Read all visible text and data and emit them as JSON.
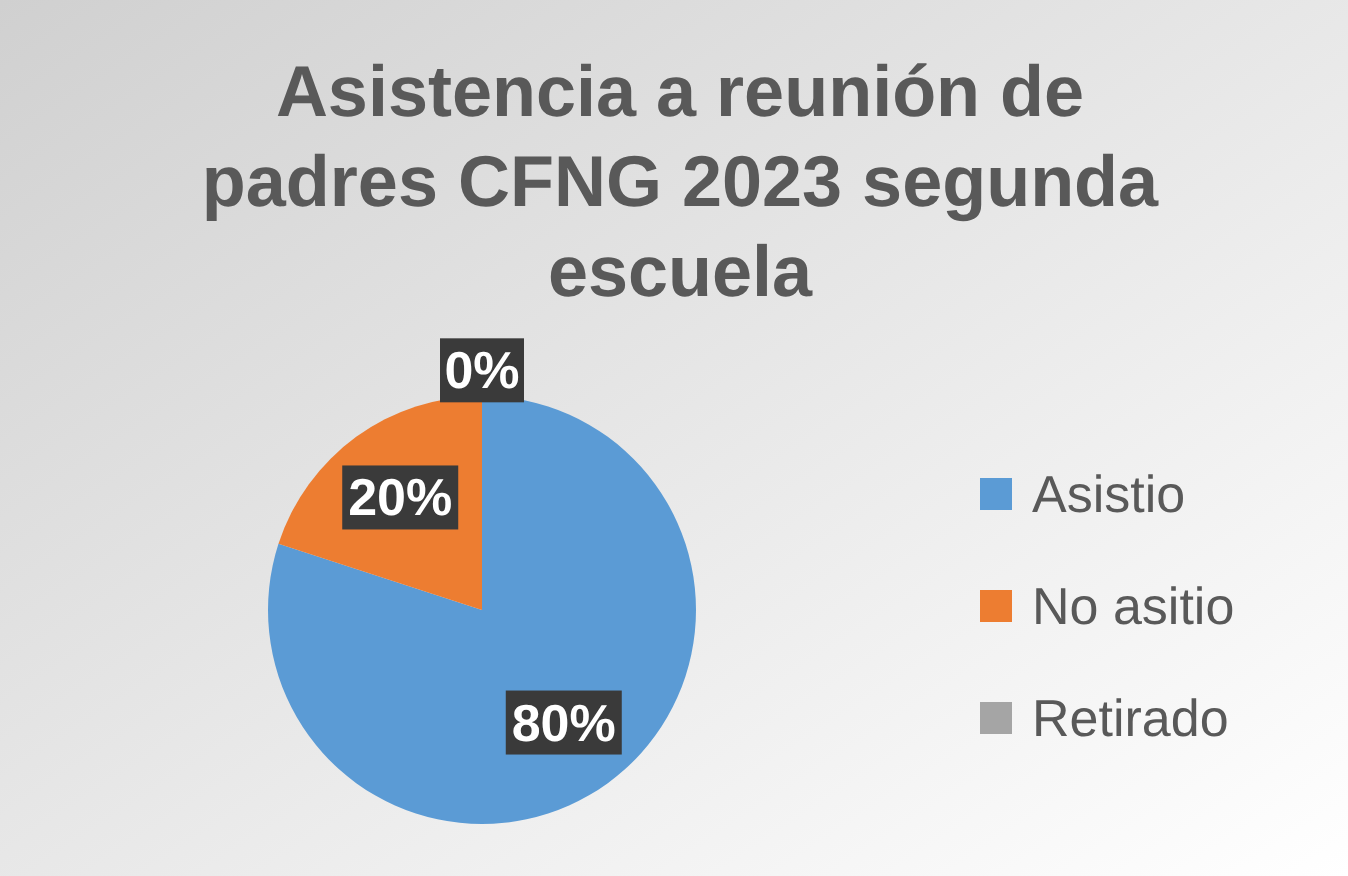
{
  "chart_data": {
    "type": "pie",
    "title": "Asistencia a reunión de padres CFNG 2023 segunda escuela",
    "categories": [
      "Asistio",
      "No asitio",
      "Retirado"
    ],
    "values": [
      80,
      20,
      0
    ],
    "colors": [
      "#5b9bd5",
      "#ed7d31",
      "#a5a5a5"
    ],
    "value_labels": [
      "80%",
      "20%",
      "0%"
    ],
    "legend": "right"
  }
}
